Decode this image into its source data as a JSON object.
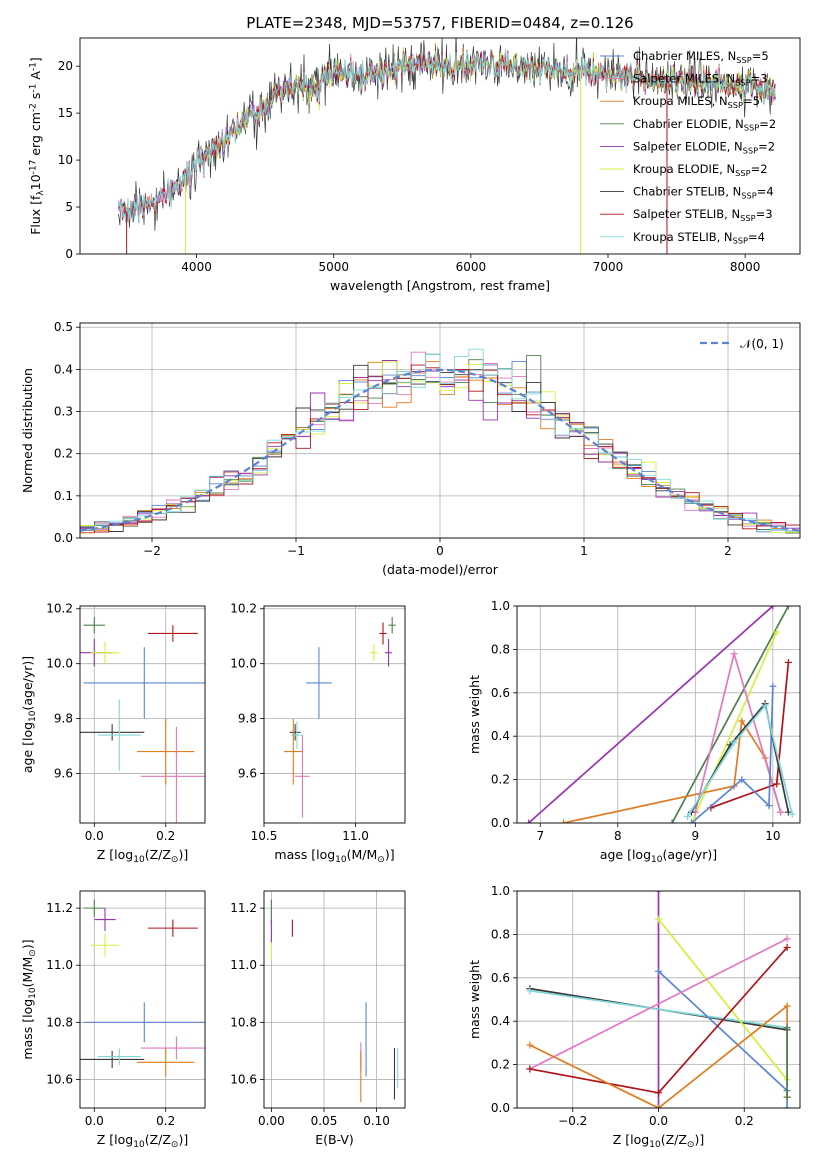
{
  "figure": {
    "title": "PLATE=2348, MJD=53757, FIBERID=0484, z=0.126"
  },
  "colors": {
    "chabrier_miles": "#5b84d6",
    "salpeter_miles": "#e377c2",
    "kroupa_miles": "#e07b20",
    "chabrier_elodie": "#4f7f4f",
    "salpeter_elodie": "#9b30b5",
    "kroupa_elodie": "#d4ef3c",
    "chabrier_stelib": "#3a3a3a",
    "salpeter_stelib": "#b0141a",
    "kroupa_stelib": "#7fd8da"
  },
  "chart_data": [
    {
      "id": "spectrum",
      "type": "line",
      "xlabel": "wavelength [Angstrom, rest frame]",
      "ylabel": "Flux [f$_\\lambda$10$^{-17}$ erg cm$^{-2}$ s$^{-1}$ A$^{-1}$]",
      "xlim": [
        3150,
        8400
      ],
      "ylim": [
        0,
        23
      ],
      "xticks": [
        4000,
        5000,
        6000,
        7000,
        8000
      ],
      "yticks": [
        0,
        5,
        10,
        15,
        20
      ],
      "grid": false,
      "legend_position": "top-right",
      "legend": [
        {
          "label": "Chabrier MILES, N",
          "sub": "SSP",
          "suffix": "=5",
          "color_key": "chabrier_miles"
        },
        {
          "label": "Salpeter MILES, N",
          "sub": "SSP",
          "suffix": "=3",
          "color_key": "salpeter_miles"
        },
        {
          "label": "Kroupa MILES, N",
          "sub": "SSP",
          "suffix": "=5",
          "color_key": "kroupa_miles"
        },
        {
          "label": "Chabrier ELODIE, N",
          "sub": "SSP",
          "suffix": "=2",
          "color_key": "chabrier_elodie"
        },
        {
          "label": "Salpeter ELODIE, N",
          "sub": "SSP",
          "suffix": "=2",
          "color_key": "salpeter_elodie"
        },
        {
          "label": "Kroupa ELODIE, N",
          "sub": "SSP",
          "suffix": "=2",
          "color_key": "kroupa_elodie"
        },
        {
          "label": "Chabrier STELIB, N",
          "sub": "SSP",
          "suffix": "=4",
          "color_key": "chabrier_stelib"
        },
        {
          "label": "Salpeter STELIB, N",
          "sub": "SSP",
          "suffix": "=3",
          "color_key": "salpeter_stelib"
        },
        {
          "label": "Kroupa STELIB, N",
          "sub": "SSP",
          "suffix": "=4",
          "color_key": "kroupa_stelib"
        }
      ],
      "continuum": {
        "x": [
          3500,
          3600,
          3700,
          3800,
          3900,
          4000,
          4100,
          4200,
          4300,
          4400,
          4500,
          4600,
          4700,
          4800,
          4900,
          5000,
          5100,
          5200,
          5300,
          5500,
          5700,
          5900,
          6100,
          6300,
          6500,
          6700,
          6900,
          7100,
          7300,
          7500,
          7700,
          7900,
          8100,
          8300
        ],
        "y": [
          4.5,
          5.0,
          5.6,
          6.5,
          7.8,
          9.5,
          11.0,
          12.3,
          13.5,
          14.8,
          15.9,
          16.9,
          17.7,
          18.3,
          18.7,
          19.2,
          19.3,
          18.6,
          19.4,
          19.9,
          20.1,
          20.0,
          20.2,
          20.0,
          19.8,
          19.6,
          19.4,
          19.1,
          18.8,
          18.6,
          18.3,
          18.0,
          17.8,
          17.6
        ]
      },
      "data_start": 3430,
      "data_end": 8220,
      "spike_dips": [
        {
          "x": 3490,
          "y": 0,
          "color_key": "salpeter_stelib"
        },
        {
          "x": 3920,
          "y": 0,
          "color_key": "kroupa_elodie"
        },
        {
          "x": 6800,
          "y": 0,
          "color_key": "kroupa_elodie"
        },
        {
          "x": 7430,
          "y": 0,
          "color_key": "salpeter_stelib"
        }
      ]
    },
    {
      "id": "residuals",
      "type": "line",
      "xlabel": "(data-model)/error",
      "ylabel": "Normed distribution",
      "xlim": [
        -2.5,
        2.5
      ],
      "ylim": [
        0,
        0.51
      ],
      "xticks": [
        -2,
        -1,
        0,
        1,
        2
      ],
      "yticks": [
        0.0,
        0.1,
        0.2,
        0.3,
        0.4,
        0.5
      ],
      "grid": true,
      "legend_position": "top-right",
      "legend_label": "𝒩(0, 1)",
      "gaussian": {
        "mean": 0,
        "sigma": 1,
        "color_key": "chabrier_miles"
      },
      "bin_width": 0.1
    },
    {
      "id": "age_vs_Z",
      "type": "scatter",
      "xlabel": "Z [log$_{10}$(Z/Z$_\\odot$)]",
      "ylabel": "age  [log$_{10}$(age/yr)]",
      "xlim": [
        -0.04,
        0.31
      ],
      "ylim": [
        9.42,
        10.21
      ],
      "xticks": [
        0.0,
        0.2
      ],
      "yticks": [
        9.6,
        9.8,
        10.0,
        10.2
      ],
      "grid": true,
      "points": [
        {
          "x": 0.0,
          "y": 10.14,
          "xerr": 0.03,
          "yerr": 0.03,
          "color_key": "chabrier_elodie"
        },
        {
          "x": 0.0,
          "y": 10.04,
          "xerr": 0.05,
          "yerr": 0.05,
          "color_key": "salpeter_elodie"
        },
        {
          "x": 0.03,
          "y": 10.04,
          "xerr": 0.04,
          "yerr": 0.04,
          "color_key": "kroupa_elodie"
        },
        {
          "x": 0.22,
          "y": 10.11,
          "xerr": 0.07,
          "yerr": 0.03,
          "color_key": "salpeter_stelib"
        },
        {
          "x": 0.14,
          "y": 9.93,
          "xerr": 0.17,
          "yerr": 0.13,
          "color_key": "chabrier_miles"
        },
        {
          "x": 0.05,
          "y": 9.75,
          "xerr": 0.09,
          "yerr": 0.03,
          "color_key": "chabrier_stelib"
        },
        {
          "x": 0.07,
          "y": 9.74,
          "xerr": 0.06,
          "yerr": 0.13,
          "color_key": "kroupa_stelib"
        },
        {
          "x": 0.2,
          "y": 9.68,
          "xerr": 0.08,
          "yerr": 0.12,
          "color_key": "kroupa_miles"
        },
        {
          "x": 0.23,
          "y": 9.59,
          "xerr": 0.1,
          "yerr": 0.18,
          "color_key": "salpeter_miles"
        }
      ]
    },
    {
      "id": "age_vs_mass",
      "type": "scatter",
      "xlabel": "mass [log$_{10}$(M/M$_\\odot$)]",
      "ylabel": "",
      "xlim": [
        10.5,
        11.27
      ],
      "ylim": [
        9.42,
        10.21
      ],
      "xticks": [
        10.5,
        11.0
      ],
      "yticks": [
        9.6,
        9.8,
        10.0,
        10.2
      ],
      "grid": true,
      "points": [
        {
          "x": 11.2,
          "y": 10.14,
          "xerr": 0.02,
          "yerr": 0.03,
          "color_key": "chabrier_elodie"
        },
        {
          "x": 11.15,
          "y": 10.11,
          "xerr": 0.02,
          "yerr": 0.04,
          "color_key": "salpeter_stelib"
        },
        {
          "x": 11.18,
          "y": 10.04,
          "xerr": 0.02,
          "yerr": 0.05,
          "color_key": "salpeter_elodie"
        },
        {
          "x": 11.1,
          "y": 10.04,
          "xerr": 0.02,
          "yerr": 0.03,
          "color_key": "kroupa_elodie"
        },
        {
          "x": 10.8,
          "y": 9.93,
          "xerr": 0.07,
          "yerr": 0.13,
          "color_key": "chabrier_miles"
        },
        {
          "x": 10.67,
          "y": 9.75,
          "xerr": 0.03,
          "yerr": 0.03,
          "color_key": "chabrier_stelib"
        },
        {
          "x": 10.68,
          "y": 9.74,
          "xerr": 0.03,
          "yerr": 0.05,
          "color_key": "kroupa_stelib"
        },
        {
          "x": 10.66,
          "y": 9.68,
          "xerr": 0.05,
          "yerr": 0.12,
          "color_key": "kroupa_miles"
        },
        {
          "x": 10.71,
          "y": 9.59,
          "xerr": 0.04,
          "yerr": 0.15,
          "color_key": "salpeter_miles"
        }
      ]
    },
    {
      "id": "weight_vs_age",
      "type": "line",
      "xlabel": "age  [log$_{10}$(age/yr)]",
      "ylabel": "mass weight",
      "xlim": [
        6.7,
        10.35
      ],
      "ylim": [
        0,
        1
      ],
      "xticks": [
        7,
        8,
        9,
        10
      ],
      "yticks": [
        0.0,
        0.2,
        0.4,
        0.6,
        0.8,
        1.0
      ],
      "grid": true,
      "series": [
        {
          "color_key": "salpeter_elodie",
          "x": [
            6.85,
            10.0
          ],
          "y": [
            0.0,
            1.0
          ]
        },
        {
          "color_key": "chabrier_elodie",
          "x": [
            8.7,
            10.2
          ],
          "y": [
            0.0,
            1.0
          ]
        },
        {
          "color_key": "kroupa_elodie",
          "x": [
            8.95,
            10.05
          ],
          "y": [
            0.0,
            0.88
          ]
        },
        {
          "color_key": "kroupa_miles",
          "x": [
            7.3,
            9.5,
            9.6,
            9.9,
            10.1
          ],
          "y": [
            0.0,
            0.17,
            0.47,
            0.3,
            0.05
          ]
        },
        {
          "color_key": "salpeter_miles",
          "x": [
            9.0,
            9.5,
            10.1
          ],
          "y": [
            0.05,
            0.78,
            0.05
          ]
        },
        {
          "color_key": "salpeter_stelib",
          "x": [
            9.2,
            10.05,
            10.2
          ],
          "y": [
            0.07,
            0.18,
            0.74
          ]
        },
        {
          "color_key": "chabrier_miles",
          "x": [
            8.95,
            9.6,
            9.95,
            10.0
          ],
          "y": [
            0.0,
            0.2,
            0.08,
            0.63
          ]
        },
        {
          "color_key": "chabrier_stelib",
          "x": [
            8.95,
            9.45,
            9.9,
            10.2
          ],
          "y": [
            0.05,
            0.36,
            0.55,
            0.05
          ]
        },
        {
          "color_key": "kroupa_stelib",
          "x": [
            8.9,
            9.5,
            9.9,
            10.25
          ],
          "y": [
            0.03,
            0.37,
            0.54,
            0.04
          ]
        }
      ]
    },
    {
      "id": "mass_vs_Z",
      "type": "scatter",
      "xlabel": "Z [log$_{10}$(Z/Z$_\\odot$)]",
      "ylabel": "mass [log$_{10}$(M/M$_\\odot$)]",
      "xlim": [
        -0.04,
        0.31
      ],
      "ylim": [
        10.5,
        11.26
      ],
      "xticks": [
        0.0,
        0.2
      ],
      "yticks": [
        10.6,
        10.8,
        11.0,
        11.2
      ],
      "grid": true,
      "points": [
        {
          "x": 0.0,
          "y": 11.2,
          "xerr": 0.03,
          "yerr": 0.03,
          "color_key": "chabrier_elodie"
        },
        {
          "x": 0.03,
          "y": 11.16,
          "xerr": 0.03,
          "yerr": 0.04,
          "color_key": "salpeter_elodie"
        },
        {
          "x": 0.03,
          "y": 11.07,
          "xerr": 0.04,
          "yerr": 0.04,
          "color_key": "kroupa_elodie"
        },
        {
          "x": 0.22,
          "y": 11.13,
          "xerr": 0.07,
          "yerr": 0.03,
          "color_key": "salpeter_stelib"
        },
        {
          "x": 0.14,
          "y": 10.8,
          "xerr": 0.17,
          "yerr": 0.07,
          "color_key": "chabrier_miles"
        },
        {
          "x": 0.05,
          "y": 10.67,
          "xerr": 0.09,
          "yerr": 0.03,
          "color_key": "chabrier_stelib"
        },
        {
          "x": 0.07,
          "y": 10.68,
          "xerr": 0.06,
          "yerr": 0.03,
          "color_key": "kroupa_stelib"
        },
        {
          "x": 0.2,
          "y": 10.66,
          "xerr": 0.08,
          "yerr": 0.05,
          "color_key": "kroupa_miles"
        },
        {
          "x": 0.23,
          "y": 10.71,
          "xerr": 0.1,
          "yerr": 0.04,
          "color_key": "salpeter_miles"
        }
      ]
    },
    {
      "id": "mass_vs_ebv",
      "type": "scatter",
      "xlabel": "E(B-V)",
      "ylabel": "",
      "xlim": [
        -0.007,
        0.127
      ],
      "ylim": [
        10.5,
        11.26
      ],
      "xticks": [
        0.0,
        0.05,
        0.1
      ],
      "yticks": [
        10.6,
        10.8,
        11.0,
        11.2
      ],
      "grid": true,
      "points": [
        {
          "x": 0.0,
          "y": 11.19,
          "xerr": 0,
          "yerr": 0.04,
          "color_key": "chabrier_elodie"
        },
        {
          "x": 0.0,
          "y": 11.12,
          "xerr": 0,
          "yerr": 0.04,
          "color_key": "salpeter_elodie"
        },
        {
          "x": 0.0,
          "y": 11.05,
          "xerr": 0,
          "yerr": 0.03,
          "color_key": "kroupa_elodie"
        },
        {
          "x": 0.02,
          "y": 11.13,
          "xerr": 0,
          "yerr": 0.03,
          "color_key": "salpeter_stelib"
        },
        {
          "x": 0.09,
          "y": 10.74,
          "xerr": 0,
          "yerr": 0.13,
          "color_key": "chabrier_miles"
        },
        {
          "x": 0.085,
          "y": 10.68,
          "xerr": 0,
          "yerr": 0.05,
          "color_key": "salpeter_miles"
        },
        {
          "x": 0.085,
          "y": 10.61,
          "xerr": 0,
          "yerr": 0.09,
          "color_key": "kroupa_miles"
        },
        {
          "x": 0.117,
          "y": 10.62,
          "xerr": 0,
          "yerr": 0.09,
          "color_key": "chabrier_stelib"
        },
        {
          "x": 0.12,
          "y": 10.64,
          "xerr": 0,
          "yerr": 0.07,
          "color_key": "kroupa_stelib"
        }
      ]
    },
    {
      "id": "weight_vs_Z",
      "type": "line",
      "xlabel": "Z [log$_{10}$(Z/Z$_\\odot$)]",
      "ylabel": "mass weight",
      "xlim": [
        -0.33,
        0.33
      ],
      "ylim": [
        0,
        1
      ],
      "xticks": [
        -0.2,
        0.0,
        0.2
      ],
      "yticks": [
        0.0,
        0.2,
        0.4,
        0.6,
        0.8,
        1.0
      ],
      "grid": true,
      "series": [
        {
          "color_key": "salpeter_elodie",
          "x": [
            0.0,
            0.0
          ],
          "y": [
            0.0,
            1.0
          ]
        },
        {
          "color_key": "chabrier_stelib",
          "x": [
            -0.3,
            0.3
          ],
          "y": [
            0.55,
            0.36
          ]
        },
        {
          "color_key": "kroupa_stelib",
          "x": [
            -0.3,
            0.3
          ],
          "y": [
            0.54,
            0.37
          ]
        },
        {
          "color_key": "kroupa_elodie",
          "x": [
            0.0,
            0.3
          ],
          "y": [
            0.87,
            0.13
          ]
        },
        {
          "color_key": "chabrier_miles",
          "x": [
            0.0,
            0.3,
            0.3
          ],
          "y": [
            0.63,
            0.08,
            0.0
          ]
        },
        {
          "color_key": "salpeter_miles",
          "x": [
            -0.3,
            0.3
          ],
          "y": [
            0.18,
            0.78
          ]
        },
        {
          "color_key": "salpeter_stelib",
          "x": [
            -0.3,
            0.0,
            0.3
          ],
          "y": [
            0.18,
            0.07,
            0.74
          ]
        },
        {
          "color_key": "kroupa_miles",
          "x": [
            -0.3,
            0.0,
            0.3,
            0.3
          ],
          "y": [
            0.29,
            0.0,
            0.47,
            0.05
          ]
        },
        {
          "color_key": "chabrier_elodie",
          "x": [
            0.3,
            0.3
          ],
          "y": [
            0.05,
            0.37
          ]
        }
      ]
    }
  ]
}
